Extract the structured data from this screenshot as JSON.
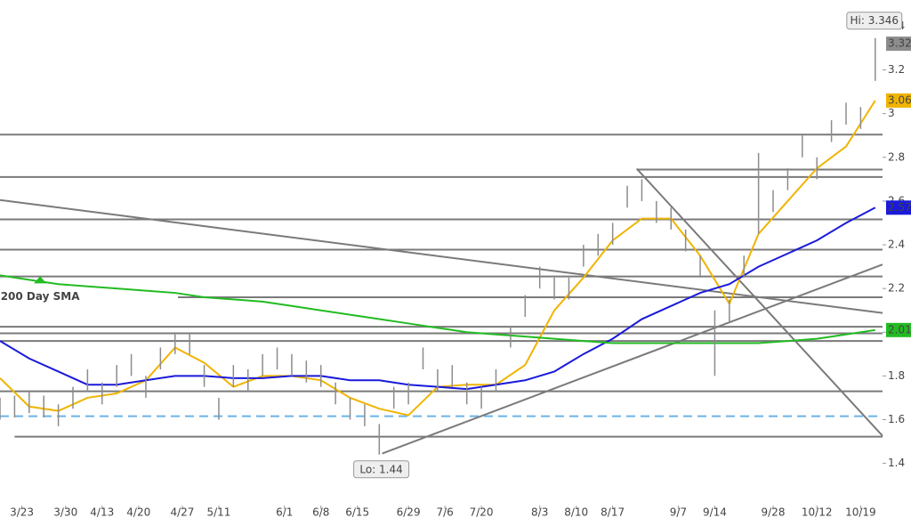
{
  "chart_data": {
    "type": "ohlc",
    "xlim": [
      0,
      121
    ],
    "ylim": [
      1.15,
      3.52
    ],
    "yticks": [
      1.4,
      1.6,
      1.8,
      2,
      2.2,
      2.4,
      2.6,
      2.8,
      3,
      3.2,
      3.4
    ],
    "xticks": [
      {
        "value": 3,
        "label": "3/23"
      },
      {
        "value": 9,
        "label": "3/30"
      },
      {
        "value": 14,
        "label": "4/13"
      },
      {
        "value": 19,
        "label": "4/20"
      },
      {
        "value": 25,
        "label": "4/27"
      },
      {
        "value": 30,
        "label": "5/11"
      },
      {
        "value": 39,
        "label": "6/1"
      },
      {
        "value": 44,
        "label": "6/8"
      },
      {
        "value": 49,
        "label": "6/15"
      },
      {
        "value": 56,
        "label": "6/29"
      },
      {
        "value": 61,
        "label": "7/6"
      },
      {
        "value": 66,
        "label": "7/20"
      },
      {
        "value": 74,
        "label": "8/3"
      },
      {
        "value": 79,
        "label": "8/10"
      },
      {
        "value": 84,
        "label": "8/17"
      },
      {
        "value": 93,
        "label": "9/7"
      },
      {
        "value": 98,
        "label": "9/14"
      },
      {
        "value": 106,
        "label": "9/28"
      },
      {
        "value": 112,
        "label": "10/12"
      },
      {
        "value": 118,
        "label": "10/19"
      }
    ],
    "price": {
      "color": "#8c8c8c",
      "last_label": "3.32",
      "last_value": 3.32,
      "x": [
        0,
        2,
        4,
        6,
        8,
        10,
        12,
        14,
        16,
        18,
        20,
        22,
        24,
        26,
        28,
        30,
        32,
        34,
        36,
        38,
        40,
        42,
        44,
        46,
        48,
        50,
        52,
        54,
        56,
        58,
        60,
        62,
        64,
        66,
        68,
        70,
        72,
        74,
        76,
        78,
        80,
        82,
        84,
        86,
        88,
        90,
        92,
        94,
        96,
        98,
        100,
        102,
        104,
        106,
        108,
        110,
        112,
        114,
        116,
        118,
        120
      ],
      "high": [
        1.7,
        1.71,
        1.73,
        1.71,
        1.67,
        1.75,
        1.83,
        1.77,
        1.85,
        1.9,
        1.8,
        1.93,
        2.0,
        2.0,
        1.85,
        1.7,
        1.85,
        1.83,
        1.9,
        1.93,
        1.9,
        1.87,
        1.85,
        1.77,
        1.7,
        1.67,
        1.58,
        1.75,
        1.77,
        1.93,
        1.83,
        1.85,
        1.77,
        1.75,
        1.83,
        2.03,
        2.17,
        2.3,
        2.25,
        2.25,
        2.4,
        2.45,
        2.5,
        2.67,
        2.7,
        2.6,
        2.57,
        2.47,
        2.35,
        2.1,
        2.15,
        2.35,
        2.82,
        2.65,
        2.75,
        2.9,
        2.8,
        2.97,
        3.05,
        3.03,
        3.346
      ],
      "low": [
        1.6,
        1.61,
        1.63,
        1.61,
        1.57,
        1.65,
        1.73,
        1.67,
        1.75,
        1.8,
        1.7,
        1.83,
        1.9,
        1.9,
        1.75,
        1.6,
        1.75,
        1.73,
        1.8,
        1.83,
        1.8,
        1.77,
        1.75,
        1.67,
        1.6,
        1.57,
        1.44,
        1.65,
        1.67,
        1.83,
        1.73,
        1.75,
        1.67,
        1.65,
        1.73,
        1.93,
        2.07,
        2.2,
        2.15,
        2.15,
        2.3,
        2.35,
        2.4,
        2.57,
        2.6,
        2.5,
        2.47,
        2.37,
        2.25,
        1.8,
        2.05,
        2.25,
        2.45,
        2.55,
        2.65,
        2.8,
        2.7,
        2.87,
        2.95,
        2.93,
        3.15
      ]
    },
    "averages": {
      "x": [
        0,
        4,
        8,
        12,
        16,
        20,
        24,
        28,
        32,
        36,
        40,
        44,
        48,
        52,
        56,
        60,
        64,
        68,
        72,
        76,
        80,
        84,
        88,
        92,
        96,
        100,
        104,
        108,
        112,
        116,
        120
      ],
      "series": [
        {
          "color": "#f0b400",
          "last_label": "3.06",
          "values": [
            1.79,
            1.66,
            1.64,
            1.7,
            1.72,
            1.78,
            1.93,
            1.86,
            1.75,
            1.8,
            1.8,
            1.78,
            1.7,
            1.65,
            1.62,
            1.75,
            1.76,
            1.76,
            1.85,
            2.1,
            2.25,
            2.42,
            2.52,
            2.52,
            2.35,
            2.13,
            2.45,
            2.6,
            2.75,
            2.85,
            3.06
          ]
        },
        {
          "color": "#1a1adb",
          "last_label": "2.57",
          "values": [
            1.96,
            1.88,
            1.82,
            1.76,
            1.76,
            1.78,
            1.8,
            1.8,
            1.79,
            1.79,
            1.8,
            1.8,
            1.78,
            1.78,
            1.76,
            1.75,
            1.74,
            1.76,
            1.78,
            1.82,
            1.9,
            1.97,
            2.06,
            2.12,
            2.18,
            2.22,
            2.3,
            2.36,
            2.42,
            2.5,
            2.57
          ]
        },
        {
          "color": "#22bb22",
          "last_label": "2.01",
          "values": [
            2.26,
            2.24,
            2.22,
            2.21,
            2.2,
            2.19,
            2.18,
            2.16,
            2.15,
            2.14,
            2.12,
            2.1,
            2.08,
            2.06,
            2.04,
            2.02,
            2,
            1.99,
            1.98,
            1.97,
            1.96,
            1.95,
            1.95,
            1.95,
            1.95,
            1.95,
            1.95,
            1.96,
            1.97,
            1.99,
            2.01
          ]
        }
      ]
    },
    "levels": [
      {
        "value": 2.904,
        "from": 0
      },
      {
        "value": 2.744,
        "from": 87.3
      },
      {
        "value": 2.71,
        "from": 0
      },
      {
        "value": 2.516,
        "from": 0
      },
      {
        "value": 2.378,
        "from": 0
      },
      {
        "value": 2.255,
        "from": 0
      },
      {
        "value": 2.16,
        "from": 24.4
      },
      {
        "value": 2.025,
        "from": 0
      },
      {
        "value": 1.995,
        "from": 0
      },
      {
        "value": 1.96,
        "from": 0
      },
      {
        "value": 1.73,
        "from": 0
      },
      {
        "value": 1.522,
        "from": 2
      }
    ],
    "dashed_level": {
      "value": 1.616,
      "color": "#6ab4e6"
    },
    "trendlines": [
      {
        "x": [
          0,
          121
        ],
        "y": [
          2.605,
          2.088
        ]
      },
      {
        "x": [
          52.4,
          121
        ],
        "y": [
          1.445,
          2.31
        ]
      },
      {
        "x": [
          87.3,
          121
        ],
        "y": [
          2.748,
          1.526
        ]
      }
    ],
    "annotations": [
      {
        "label": "Hi: 3.346",
        "value": 3.346,
        "x": 120
      },
      {
        "label": "Lo: 1.44",
        "value": 1.44,
        "x": 52.4
      }
    ],
    "sma_label": {
      "text": "200 Day SMA",
      "x": 5.5,
      "value": 2.24
    }
  }
}
